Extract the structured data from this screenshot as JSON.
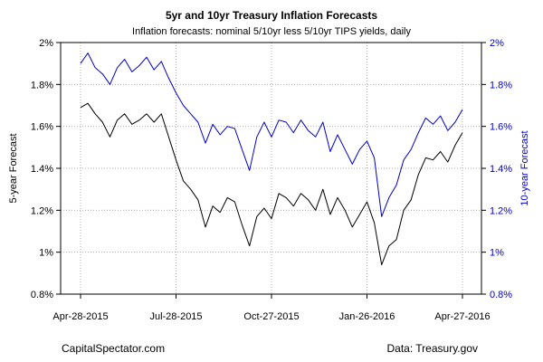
{
  "chart_data": {
    "type": "line",
    "title": "5yr and 10yr Treasury Inflation Forecasts",
    "subtitle": "Inflation forecasts: nominal 5/10yr less 5/10yr TIPS yields, daily",
    "ylabel_left": "5-year Forecast",
    "ylabel_right": "10-year Forecast",
    "ylim": [
      0.8,
      2.0
    ],
    "yticks": [
      "0.8%",
      "1%",
      "1.2%",
      "1.4%",
      "1.6%",
      "1.8%",
      "2%"
    ],
    "yticks_right": [
      "0.8%",
      "1%",
      "1.2%",
      "1.4%",
      "1.6%",
      "1.8%",
      "2%"
    ],
    "xticks": [
      "Apr-28-2015",
      "Jul-28-2015",
      "Oct-27-2015",
      "Jan-26-2016",
      "Apr-27-2016"
    ],
    "grid": true,
    "source_left": "CapitalSpectator.com",
    "source_right": "Data: Treasury.gov",
    "colors": {
      "series_5yr": "#000000",
      "series_10yr": "#0000cc",
      "grid": "#b0b0b0",
      "right_axis": "#0000cc"
    },
    "x": [
      "Apr-28-2015",
      "May-05-2015",
      "May-12-2015",
      "May-19-2015",
      "May-26-2015",
      "Jun-02-2015",
      "Jun-09-2015",
      "Jun-16-2015",
      "Jun-23-2015",
      "Jun-30-2015",
      "Jul-07-2015",
      "Jul-14-2015",
      "Jul-21-2015",
      "Jul-28-2015",
      "Aug-04-2015",
      "Aug-11-2015",
      "Aug-18-2015",
      "Aug-25-2015",
      "Sep-01-2015",
      "Sep-08-2015",
      "Sep-15-2015",
      "Sep-22-2015",
      "Sep-29-2015",
      "Oct-06-2015",
      "Oct-13-2015",
      "Oct-20-2015",
      "Oct-27-2015",
      "Nov-03-2015",
      "Nov-10-2015",
      "Nov-17-2015",
      "Nov-24-2015",
      "Dec-01-2015",
      "Dec-08-2015",
      "Dec-15-2015",
      "Dec-22-2015",
      "Dec-29-2015",
      "Jan-05-2016",
      "Jan-12-2016",
      "Jan-19-2016",
      "Jan-26-2016",
      "Feb-02-2016",
      "Feb-09-2016",
      "Feb-16-2016",
      "Feb-23-2016",
      "Mar-01-2016",
      "Mar-08-2016",
      "Mar-15-2016",
      "Mar-22-2016",
      "Mar-29-2016",
      "Apr-05-2016",
      "Apr-12-2016",
      "Apr-19-2016",
      "Apr-27-2016"
    ],
    "series": [
      {
        "name": "5-year Forecast",
        "axis": "left",
        "values": [
          1.69,
          1.71,
          1.66,
          1.62,
          1.55,
          1.63,
          1.66,
          1.61,
          1.63,
          1.66,
          1.62,
          1.66,
          1.55,
          1.44,
          1.34,
          1.3,
          1.25,
          1.12,
          1.22,
          1.19,
          1.26,
          1.24,
          1.13,
          1.03,
          1.17,
          1.21,
          1.16,
          1.28,
          1.26,
          1.22,
          1.28,
          1.25,
          1.2,
          1.3,
          1.18,
          1.26,
          1.2,
          1.12,
          1.18,
          1.24,
          1.14,
          0.94,
          1.03,
          1.06,
          1.2,
          1.25,
          1.37,
          1.45,
          1.44,
          1.48,
          1.43,
          1.51,
          1.57
        ]
      },
      {
        "name": "10-year Forecast",
        "axis": "right",
        "values": [
          1.9,
          1.95,
          1.88,
          1.85,
          1.8,
          1.88,
          1.92,
          1.86,
          1.89,
          1.93,
          1.87,
          1.91,
          1.83,
          1.76,
          1.7,
          1.66,
          1.62,
          1.52,
          1.61,
          1.56,
          1.6,
          1.59,
          1.49,
          1.39,
          1.55,
          1.62,
          1.55,
          1.63,
          1.62,
          1.57,
          1.63,
          1.58,
          1.55,
          1.62,
          1.48,
          1.56,
          1.49,
          1.42,
          1.49,
          1.53,
          1.45,
          1.17,
          1.26,
          1.32,
          1.44,
          1.49,
          1.57,
          1.64,
          1.61,
          1.65,
          1.58,
          1.62,
          1.68
        ]
      }
    ]
  }
}
